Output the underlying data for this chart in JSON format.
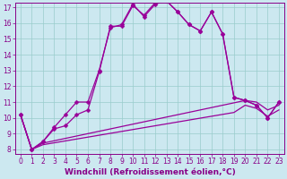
{
  "xlabel": "Windchill (Refroidissement éolien,°C)",
  "x": [
    0,
    1,
    2,
    3,
    4,
    5,
    6,
    7,
    8,
    9,
    10,
    11,
    12,
    13,
    14,
    15,
    16,
    17,
    18,
    19,
    20,
    21,
    22,
    23
  ],
  "line1": [
    10.2,
    8.0,
    8.5,
    9.4,
    10.2,
    11.0,
    11.0,
    13.0,
    15.7,
    15.9,
    17.2,
    16.4,
    17.2,
    17.4,
    16.7,
    15.9,
    15.5,
    16.7,
    15.3,
    11.3,
    11.1,
    10.8,
    10.0,
    11.0
  ],
  "line2": [
    10.2,
    8.0,
    8.5,
    9.3,
    9.5,
    10.2,
    10.5,
    12.9,
    15.8,
    15.8,
    17.1,
    16.5,
    17.3,
    17.4,
    16.7,
    15.9,
    15.5,
    16.7,
    15.3,
    11.3,
    11.1,
    10.8,
    10.0,
    11.0
  ],
  "line3": [
    10.2,
    8.0,
    8.4,
    8.55,
    8.7,
    8.85,
    9.0,
    9.15,
    9.3,
    9.45,
    9.6,
    9.75,
    9.9,
    10.05,
    10.2,
    10.35,
    10.5,
    10.65,
    10.8,
    10.95,
    11.1,
    11.0,
    10.5,
    10.8
  ],
  "line4": [
    10.2,
    8.0,
    8.3,
    8.42,
    8.54,
    8.66,
    8.78,
    8.9,
    9.02,
    9.14,
    9.26,
    9.38,
    9.5,
    9.62,
    9.74,
    9.86,
    9.98,
    10.1,
    10.22,
    10.34,
    10.8,
    10.6,
    10.1,
    10.5
  ],
  "line_color": "#990099",
  "marker": "D",
  "marker_size": 2.5,
  "bg_color": "#cce8f0",
  "grid_color": "#99cccc",
  "ylim_min": 7.7,
  "ylim_max": 17.3,
  "xlim_min": -0.5,
  "xlim_max": 23.5,
  "yticks": [
    8,
    9,
    10,
    11,
    12,
    13,
    14,
    15,
    16,
    17
  ],
  "xticks": [
    0,
    1,
    2,
    3,
    4,
    5,
    6,
    7,
    8,
    9,
    10,
    11,
    12,
    13,
    14,
    15,
    16,
    17,
    18,
    19,
    20,
    21,
    22,
    23
  ],
  "tick_fontsize": 5.5,
  "xlabel_fontsize": 6.5,
  "label_color": "#880088",
  "linewidth": 0.9
}
